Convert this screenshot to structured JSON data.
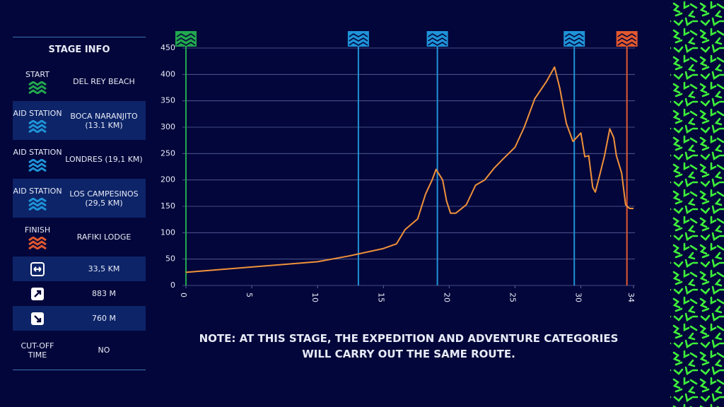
{
  "table": {
    "title": "STAGE INFO",
    "rows": [
      {
        "label": "START",
        "value": "DEL REY BEACH"
      },
      {
        "label": "AID STATION",
        "value": "BOCA NARANJITO (13.1 KM)"
      },
      {
        "label": "AID STATION",
        "value": "LONDRES (19,1 KM)"
      },
      {
        "label": "AID STATION",
        "value": "LOS CAMPESINOS (29,5 KM)"
      },
      {
        "label": "FINISH",
        "value": "RAFIKI LODGE"
      },
      {
        "value": "33,5 KM"
      },
      {
        "value": "883 M"
      },
      {
        "value": "760 M"
      },
      {
        "label": "CUT-OFF TIME",
        "value": "NO"
      }
    ]
  },
  "note": "NOTE: AT THIS STAGE, THE EXPEDITION AND ADVENTURE CATEGORIES WILL CARRY OUT THE SAME ROUTE.",
  "chart_data": {
    "type": "line",
    "x": [
      0,
      5,
      10,
      12.4,
      15,
      16,
      16.65,
      17.6,
      18.2,
      18.7,
      19.0,
      19.5,
      19.8,
      20.1,
      20.5,
      21.3,
      22.0,
      22.7,
      23.4,
      24.1,
      25,
      25.7,
      26.5,
      27.4,
      28.0,
      28.4,
      28.9,
      29.4,
      30.0,
      30.3,
      30.6,
      30.9,
      31.1,
      31.4,
      31.8,
      32.2,
      32.5,
      32.7,
      33.1,
      33.4,
      33.7,
      34
    ],
    "series": [
      {
        "color": "#f0923a",
        "values": [
          25,
          35,
          45,
          56,
          70,
          79,
          106,
          126,
          173,
          200,
          220,
          200,
          160,
          137,
          137,
          153,
          190,
          200,
          222,
          240,
          262,
          300,
          354,
          387,
          414,
          374,
          307,
          273,
          289,
          244,
          246,
          186,
          177,
          206,
          246,
          297,
          280,
          246,
          213,
          153,
          146,
          146
        ]
      }
    ],
    "markers": [
      {
        "x": 0,
        "color": "#22a84e"
      },
      {
        "x": 13.1,
        "color": "#1f93d8"
      },
      {
        "x": 19.1,
        "color": "#1f93d8"
      },
      {
        "x": 29.5,
        "color": "#1f93d8"
      },
      {
        "x": 33.5,
        "color": "#e2582f"
      }
    ],
    "xlim": [
      0,
      34
    ],
    "xticks": [
      0,
      5,
      10,
      15,
      20,
      25,
      30,
      34
    ],
    "ylim": [
      0,
      450
    ],
    "yticks": [
      0,
      50,
      100,
      150,
      200,
      250,
      300,
      350,
      400,
      450
    ],
    "grid": true
  }
}
